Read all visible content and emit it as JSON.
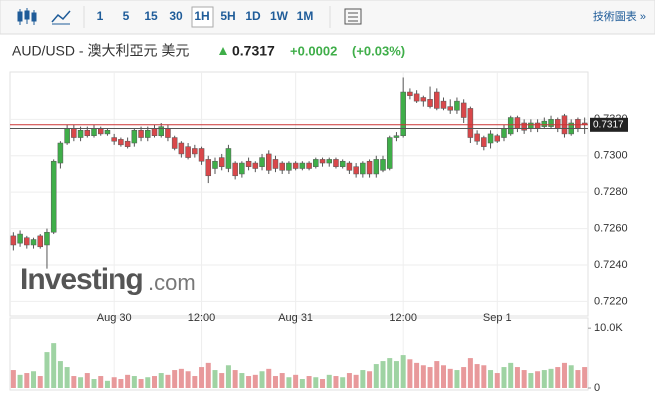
{
  "toolbar": {
    "intervals": [
      "1",
      "5",
      "15",
      "30",
      "1H",
      "5H",
      "1D",
      "1W",
      "1M"
    ],
    "selected": "1H",
    "tech_chart": "技術圖表 »"
  },
  "header": {
    "symbol": "AUD/USD - 澳大利亞元 美元",
    "price": "0.7317",
    "change": "+0.0002",
    "change_pct": "(+0.03%)"
  },
  "chart_data": {
    "type": "candlestick",
    "watermark": "Investing",
    "watermark_suffix": ".com",
    "categories": [
      null,
      null,
      null,
      null,
      null,
      null,
      null,
      null,
      null,
      null,
      null,
      null,
      null,
      null,
      null,
      "Aug 30",
      null,
      null,
      null,
      null,
      null,
      null,
      null,
      null,
      null,
      null,
      null,
      null,
      "12:00",
      null,
      null,
      null,
      null,
      null,
      null,
      null,
      null,
      null,
      null,
      null,
      null,
      null,
      "Aug 31",
      null,
      null,
      null,
      null,
      null,
      null,
      null,
      null,
      null,
      null,
      null,
      null,
      null,
      null,
      null,
      "12:00",
      null,
      null,
      null,
      null,
      null,
      null,
      null,
      null,
      null,
      null,
      null,
      null,
      null,
      "Sep 1",
      null,
      null,
      null,
      null,
      null,
      null,
      null,
      null,
      null,
      null,
      null,
      null,
      null
    ],
    "open": [
      0.7256,
      0.7252,
      0.7255,
      0.7251,
      0.7256,
      0.7251,
      0.7258,
      0.7296,
      0.7307,
      0.7315,
      0.731,
      0.7314,
      0.7311,
      0.7315,
      0.7312,
      0.731,
      0.7309,
      0.7308,
      0.7307,
      0.7314,
      0.731,
      0.7315,
      0.7311,
      0.7315,
      0.731,
      0.7307,
      0.7305,
      0.7304,
      0.7304,
      0.7298,
      0.7293,
      0.7299,
      0.7293,
      0.7296,
      0.729,
      0.7297,
      0.7296,
      0.7294,
      0.7301,
      0.7298,
      0.7296,
      0.7292,
      0.7296,
      0.7293,
      0.7296,
      0.7294,
      0.7298,
      0.7296,
      0.7298,
      0.7294,
      0.7296,
      0.7294,
      0.729,
      0.7297,
      0.729,
      0.7292,
      0.7293,
      0.731,
      0.7311,
      0.7335,
      0.7334,
      0.7332,
      0.7331,
      0.7335,
      0.733,
      0.7327,
      0.7325,
      0.7329,
      0.7326,
      0.7312,
      0.731,
      0.7307,
      0.7311,
      0.731,
      0.7312,
      0.7321,
      0.7318,
      0.7315,
      0.7318,
      0.7316,
      0.7316,
      0.732,
      0.7322,
      0.7312,
      0.732,
      0.7318
    ],
    "high": [
      0.7258,
      0.7259,
      0.7256,
      0.7255,
      0.7257,
      0.726,
      0.7298,
      0.7308,
      0.7317,
      0.7317,
      0.7316,
      0.7316,
      0.7317,
      0.7316,
      0.7315,
      0.7312,
      0.731,
      0.731,
      0.7315,
      0.7316,
      0.7316,
      0.7317,
      0.7318,
      0.7317,
      0.7311,
      0.7308,
      0.7307,
      0.7306,
      0.7305,
      0.73,
      0.7299,
      0.7301,
      0.7306,
      0.7297,
      0.7297,
      0.7299,
      0.7297,
      0.7301,
      0.7303,
      0.73,
      0.7297,
      0.7297,
      0.7297,
      0.7297,
      0.7297,
      0.7299,
      0.7299,
      0.7299,
      0.7299,
      0.7298,
      0.7297,
      0.7296,
      0.7297,
      0.7298,
      0.73,
      0.73,
      0.7311,
      0.7313,
      0.7343,
      0.7337,
      0.7336,
      0.7333,
      0.7338,
      0.7337,
      0.7332,
      0.7331,
      0.7332,
      0.7331,
      0.7327,
      0.7314,
      0.7311,
      0.7314,
      0.7312,
      0.7317,
      0.7322,
      0.7322,
      0.732,
      0.732,
      0.732,
      0.7321,
      0.7322,
      0.7321,
      0.7323,
      0.732,
      0.7321,
      0.7321
    ],
    "low": [
      0.7248,
      0.725,
      0.7249,
      0.7249,
      0.7249,
      0.7238,
      0.7257,
      0.7293,
      0.7306,
      0.7308,
      0.7308,
      0.731,
      0.731,
      0.7311,
      0.7311,
      0.7306,
      0.7305,
      0.7304,
      0.7305,
      0.7308,
      0.7308,
      0.731,
      0.731,
      0.7308,
      0.7303,
      0.7299,
      0.7298,
      0.7299,
      0.7295,
      0.7285,
      0.729,
      0.7292,
      0.7291,
      0.7287,
      0.7288,
      0.7292,
      0.7291,
      0.7292,
      0.729,
      0.7291,
      0.729,
      0.729,
      0.7292,
      0.7292,
      0.7292,
      0.7293,
      0.7294,
      0.7294,
      0.7293,
      0.7293,
      0.729,
      0.7288,
      0.7288,
      0.7288,
      0.7288,
      0.7291,
      0.7292,
      0.7308,
      0.731,
      0.7331,
      0.7329,
      0.7327,
      0.7326,
      0.7325,
      0.7325,
      0.7323,
      0.7323,
      0.7318,
      0.7307,
      0.7306,
      0.7303,
      0.7304,
      0.7307,
      0.7308,
      0.7311,
      0.7313,
      0.7312,
      0.7313,
      0.7313,
      0.7315,
      0.7315,
      0.7313,
      0.731,
      0.7311,
      0.7313,
      0.7312
    ],
    "close": [
      0.7251,
      0.7257,
      0.7251,
      0.7254,
      0.725,
      0.7258,
      0.7297,
      0.7307,
      0.7315,
      0.731,
      0.7314,
      0.7311,
      0.7315,
      0.7312,
      0.7314,
      0.7308,
      0.7306,
      0.7305,
      0.7314,
      0.731,
      0.7314,
      0.7311,
      0.7316,
      0.731,
      0.7304,
      0.7301,
      0.7299,
      0.7301,
      0.7297,
      0.7289,
      0.7297,
      0.7294,
      0.7304,
      0.7289,
      0.7296,
      0.7294,
      0.7293,
      0.7299,
      0.7292,
      0.7293,
      0.7292,
      0.7296,
      0.7293,
      0.7296,
      0.7293,
      0.7298,
      0.7296,
      0.7298,
      0.7294,
      0.7297,
      0.7292,
      0.729,
      0.7296,
      0.729,
      0.7298,
      0.7298,
      0.731,
      0.7311,
      0.7335,
      0.7333,
      0.733,
      0.733,
      0.7327,
      0.7326,
      0.7326,
      0.7325,
      0.733,
      0.7321,
      0.731,
      0.7308,
      0.7305,
      0.7312,
      0.7308,
      0.7315,
      0.7321,
      0.7315,
      0.7314,
      0.7318,
      0.7315,
      0.7319,
      0.732,
      0.7315,
      0.7312,
      0.7318,
      0.7315,
      0.7317
    ],
    "volume": [
      3000,
      2200,
      2500,
      2800,
      2000,
      6000,
      7500,
      4500,
      3500,
      2000,
      1800,
      2500,
      1500,
      2000,
      1200,
      1800,
      1500,
      2200,
      2000,
      1500,
      1800,
      2000,
      2500,
      2200,
      3000,
      3200,
      2800,
      2000,
      3500,
      4200,
      3000,
      2500,
      3800,
      3000,
      2500,
      2000,
      2200,
      2800,
      3200,
      2000,
      2500,
      1800,
      2200,
      1500,
      2000,
      1800,
      1500,
      2200,
      2000,
      1800,
      2500,
      2200,
      3000,
      2800,
      4000,
      4500,
      5000,
      4500,
      5500,
      4800,
      4200,
      3800,
      3500,
      4500,
      3800,
      3200,
      3000,
      3500,
      5000,
      4000,
      3800,
      3000,
      2500,
      3500,
      4200,
      3500,
      3000,
      2500,
      2800,
      3000,
      3200,
      3500,
      4200,
      3800,
      3000,
      3500
    ],
    "up_color": "#3fae49",
    "down_color": "#d9474a",
    "up_volume_color": "#9fd3a3",
    "down_volume_color": "#e8999b",
    "last_price": 0.7317,
    "previous_close": 0.7315,
    "ylim": [
      0.7212,
      0.7346
    ],
    "yticks": [
      {
        "value": 0.722,
        "label": "0.7220"
      },
      {
        "value": 0.724,
        "label": "0.7240"
      },
      {
        "value": 0.726,
        "label": "0.7260"
      },
      {
        "value": 0.728,
        "label": "0.7280"
      },
      {
        "value": 0.73,
        "label": "0.7300"
      },
      {
        "value": 0.732,
        "label": "0.7320"
      }
    ],
    "vlim": [
      0,
      11700
    ],
    "vticks": [
      {
        "value": 10000,
        "label": "10.0K"
      },
      0
    ],
    "grid": true
  }
}
